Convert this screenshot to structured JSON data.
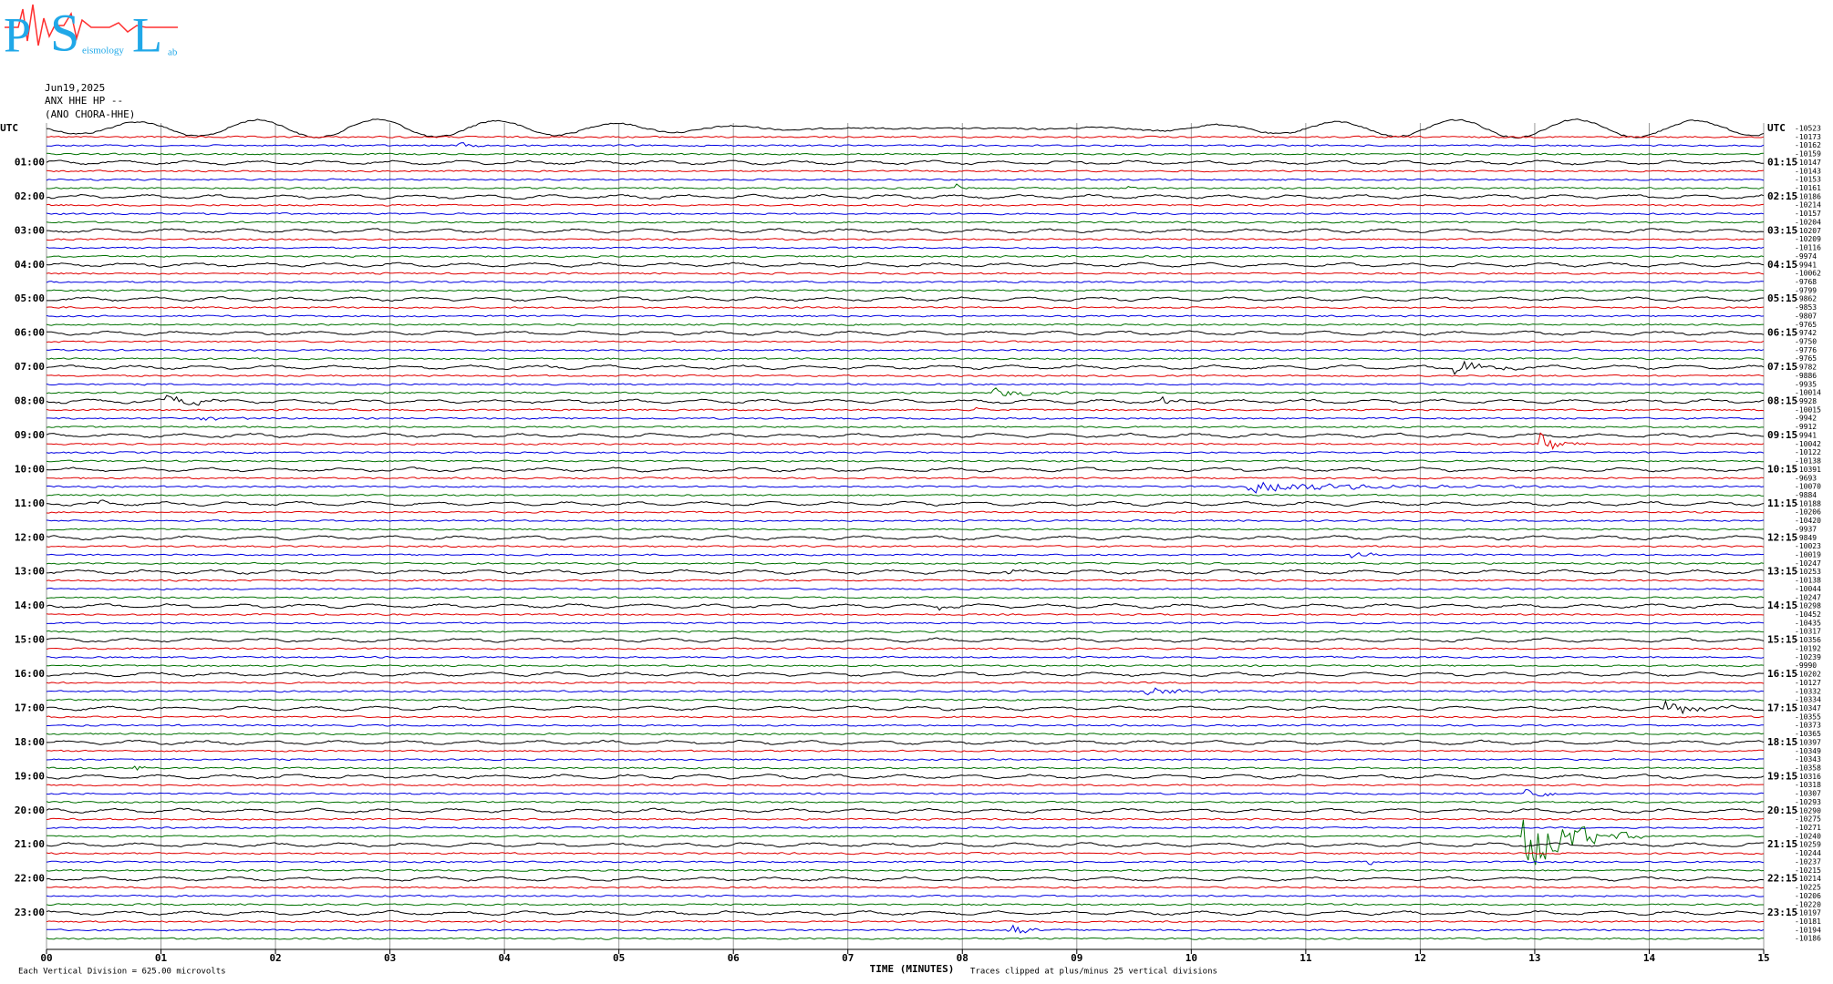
{
  "chart_data": {
    "type": "helicorder",
    "logo": {
      "letters": [
        "P",
        "S",
        "L"
      ],
      "small_texts": [
        "eismology",
        "ab"
      ]
    },
    "date": "Jun19,2025",
    "station": "ANX HHE HP --",
    "station_name": "(ANO CHORA-HHE)",
    "left_labels": [
      "UTC",
      "01:00",
      "02:00",
      "03:00",
      "04:00",
      "05:00",
      "06:00",
      "07:00",
      "08:00",
      "09:00",
      "10:00",
      "11:00",
      "12:00",
      "13:00",
      "14:00",
      "15:00",
      "16:00",
      "17:00",
      "18:00",
      "19:00",
      "20:00",
      "21:00",
      "22:00",
      "23:00"
    ],
    "right_labels": [
      "UTC",
      "01:15",
      "02:15",
      "03:15",
      "04:15",
      "05:15",
      "06:15",
      "07:15",
      "08:15",
      "09:15",
      "10:15",
      "11:15",
      "12:15",
      "13:15",
      "14:15",
      "15:15",
      "16:15",
      "17:15",
      "18:15",
      "19:15",
      "20:15",
      "21:15",
      "22:15",
      "23:15"
    ],
    "offsets": [
      -10523,
      -10173,
      -10162,
      -10159,
      -10147,
      -10143,
      -10153,
      -10161,
      -10186,
      -10214,
      -10157,
      -10204,
      -10207,
      -10209,
      -10116,
      -9974,
      -9941,
      -10062,
      -9768,
      -9799,
      -9862,
      -9853,
      -9807,
      -9765,
      -9742,
      -9750,
      -9776,
      -9765,
      -9782,
      -9886,
      -9935,
      -10014,
      -9928,
      -10015,
      -9942,
      -9912,
      -9941,
      -10042,
      -10122,
      -10138,
      -10391,
      -9693,
      -10070,
      -9884,
      -10188,
      -10206,
      -10420,
      -9937,
      -9849,
      -10023,
      -10019,
      -10247,
      -10253,
      -10138,
      -10044,
      -10247,
      -10298,
      -10452,
      -10435,
      -10317,
      -10356,
      -10192,
      -10239,
      -9990,
      -10202,
      -10127,
      -10332,
      -10334,
      -10347,
      -10355,
      -10373,
      -10365,
      -10397,
      -10349,
      -10343,
      -10358,
      -10316,
      -10318,
      -10307,
      -10293,
      -10290,
      -10275,
      -10271,
      -10240,
      -10259,
      -10244,
      -10237,
      -10215,
      -10214,
      -10225,
      -10206,
      -10220,
      -10197,
      -10181,
      -10194,
      -10186
    ],
    "trace_colors": [
      "#000000",
      "#e00000",
      "#0000e0",
      "#007000"
    ],
    "xlim": [
      0,
      15
    ],
    "xticks": [
      {
        "value": 0,
        "label": "00"
      },
      {
        "value": 1,
        "label": "01"
      },
      {
        "value": 2,
        "label": "02"
      },
      {
        "value": 3,
        "label": "03"
      },
      {
        "value": 4,
        "label": "04"
      },
      {
        "value": 5,
        "label": "05"
      },
      {
        "value": 6,
        "label": "06"
      },
      {
        "value": 7,
        "label": "07"
      },
      {
        "value": 8,
        "label": "08"
      },
      {
        "value": 9,
        "label": "09"
      },
      10,
      11,
      12,
      13,
      14,
      15
    ],
    "xlabel": "TIME (MINUTES)",
    "footnote_left": "Each Vertical Division =  625.00 microvolts",
    "footnote_right": "Traces clipped at plus/minus 25 vertical divisions",
    "grid": true
  }
}
